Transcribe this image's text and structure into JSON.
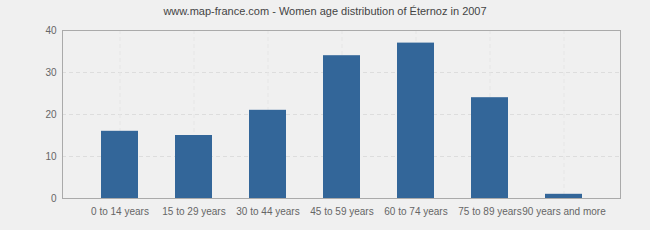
{
  "chart_data": {
    "type": "bar",
    "title": "www.map-france.com - Women age distribution of Éternoz in 2007",
    "categories": [
      "0 to 14 years",
      "15 to 29 years",
      "30 to 44 years",
      "45 to 59 years",
      "60 to 74 years",
      "75 to 89 years",
      "90 years and more"
    ],
    "values": [
      16,
      15,
      21,
      34,
      37,
      24,
      1
    ],
    "color": "#336699",
    "ylim": [
      0,
      40
    ],
    "yticks": [
      0,
      10,
      20,
      30,
      40
    ],
    "grid": true
  }
}
